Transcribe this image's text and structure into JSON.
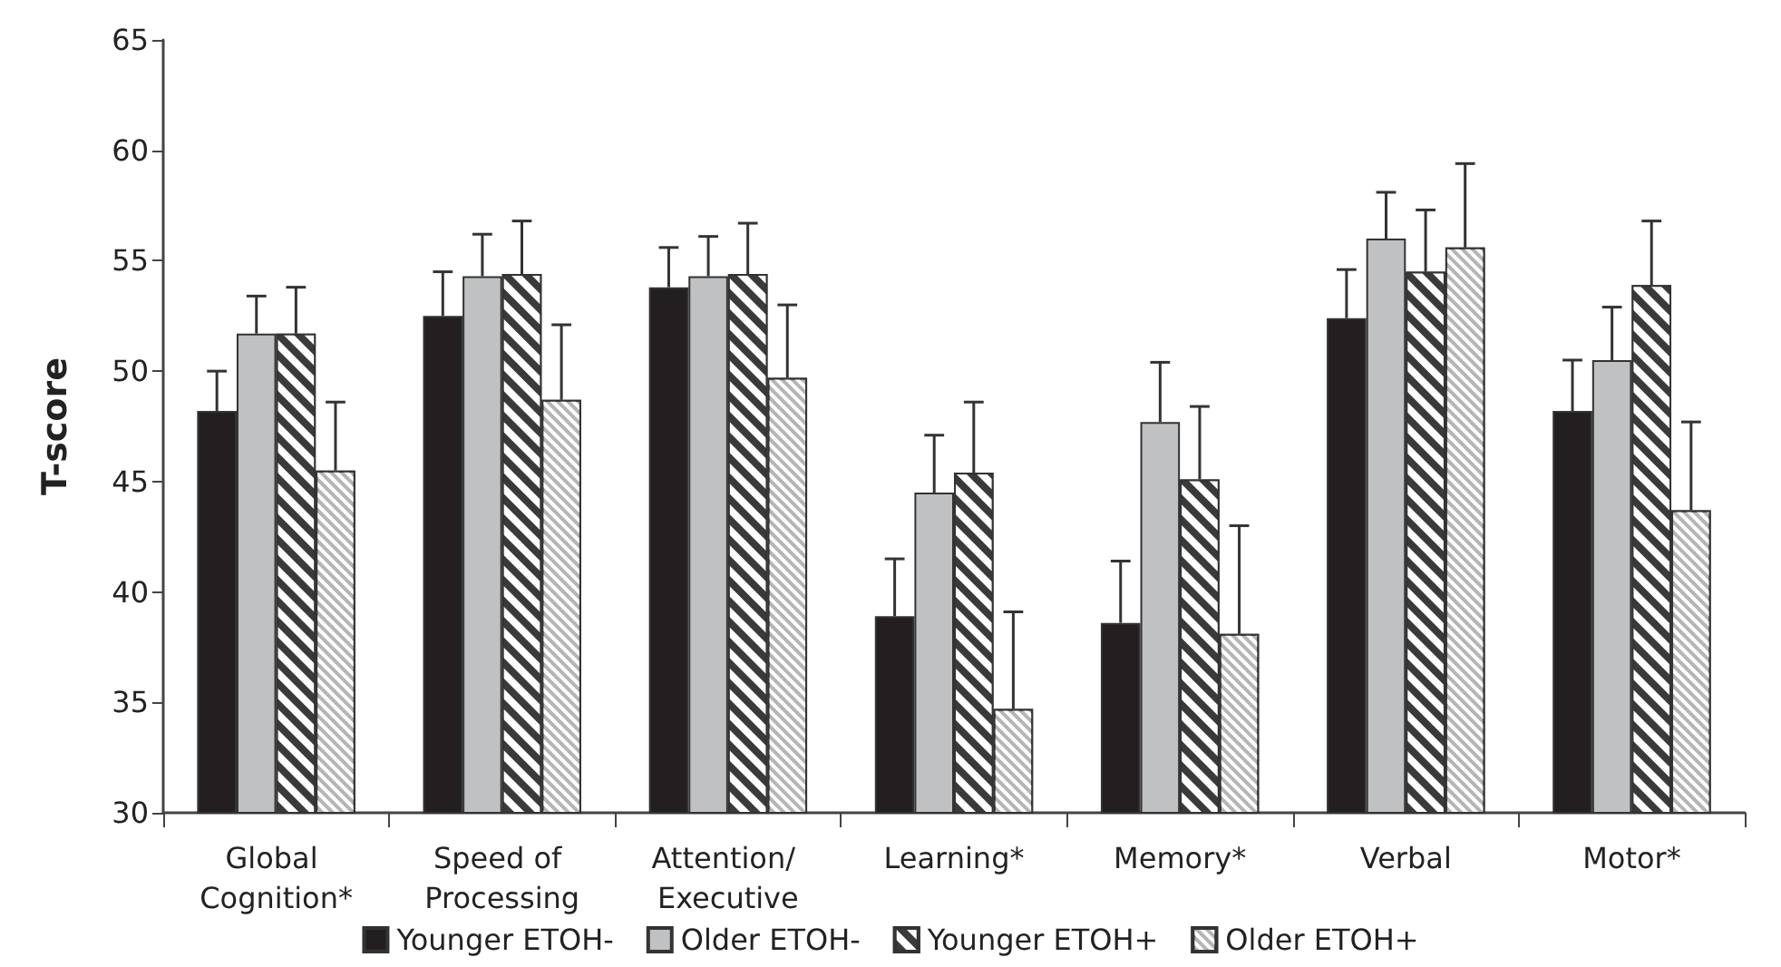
{
  "chart_data": {
    "type": "bar",
    "ylabel": "T-score",
    "categories": [
      "Global Cognition*",
      "Speed of Processing",
      "Attention/ Executive",
      "Learning*",
      "Memory*",
      "Verbal",
      "Motor*"
    ],
    "ylim": [
      30,
      65
    ],
    "yticks": [
      30,
      35,
      40,
      45,
      50,
      55,
      60,
      65
    ],
    "grid": false,
    "legend": "bottom",
    "series": [
      {
        "name": "Younger ETOH-",
        "color": "#231f20",
        "values": [
          48.2,
          52.5,
          53.8,
          38.9,
          38.6,
          52.4,
          48.2
        ],
        "errors": [
          [
            48.2,
            50.0
          ],
          [
            52.5,
            54.5
          ],
          [
            53.8,
            55.6
          ],
          [
            38.9,
            41.5
          ],
          [
            38.6,
            41.4
          ],
          [
            52.4,
            54.6
          ],
          [
            48.2,
            50.5
          ]
        ]
      },
      {
        "name": "Older ETOH-",
        "color": "#c0c1c3",
        "values": [
          51.7,
          54.3,
          54.3,
          44.5,
          47.7,
          56.0,
          50.5
        ],
        "errors": [
          [
            51.7,
            53.4
          ],
          [
            54.3,
            56.2
          ],
          [
            54.3,
            56.1
          ],
          [
            44.5,
            47.1
          ],
          [
            47.7,
            50.4
          ],
          [
            56.0,
            58.1
          ],
          [
            50.5,
            52.9
          ]
        ]
      },
      {
        "name": "Younger ETOH+",
        "color": "#3a3a3a",
        "values": [
          51.7,
          54.4,
          54.4,
          45.4,
          45.1,
          54.5,
          53.9
        ],
        "errors": [
          [
            51.7,
            53.8
          ],
          [
            54.4,
            56.8
          ],
          [
            54.4,
            56.7
          ],
          [
            45.4,
            48.6
          ],
          [
            45.1,
            48.4
          ],
          [
            54.5,
            57.3
          ],
          [
            53.9,
            56.8
          ]
        ]
      },
      {
        "name": "Older ETOH+",
        "color": "#b5b5b5",
        "values": [
          45.5,
          48.7,
          49.7,
          34.7,
          38.1,
          55.6,
          43.7
        ],
        "errors": [
          [
            45.5,
            48.6
          ],
          [
            48.7,
            52.1
          ],
          [
            49.7,
            53.0
          ],
          [
            34.7,
            39.1
          ],
          [
            38.1,
            43.0
          ],
          [
            55.6,
            59.4
          ],
          [
            43.7,
            47.7
          ]
        ]
      }
    ]
  }
}
